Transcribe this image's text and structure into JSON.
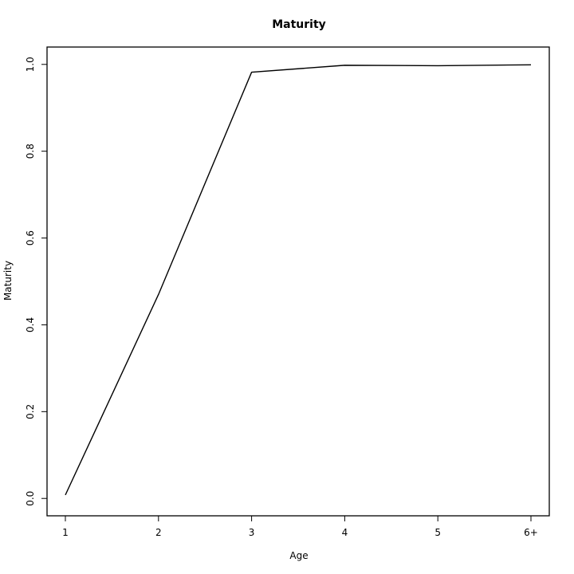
{
  "chart_data": {
    "type": "line",
    "title": "Maturity",
    "xlabel": "Age",
    "ylabel": "Maturity",
    "categories": [
      "1",
      "2",
      "3",
      "4",
      "5",
      "6+"
    ],
    "yticks": [
      "0.0",
      "0.2",
      "0.4",
      "0.6",
      "0.8",
      "1.0"
    ],
    "ylim": [
      -0.04,
      1.04
    ],
    "grid": false,
    "legend": "none",
    "series": [
      {
        "values": [
          0.008,
          0.47,
          0.982,
          0.998,
          0.997,
          0.999
        ],
        "color": "#000000"
      }
    ]
  }
}
